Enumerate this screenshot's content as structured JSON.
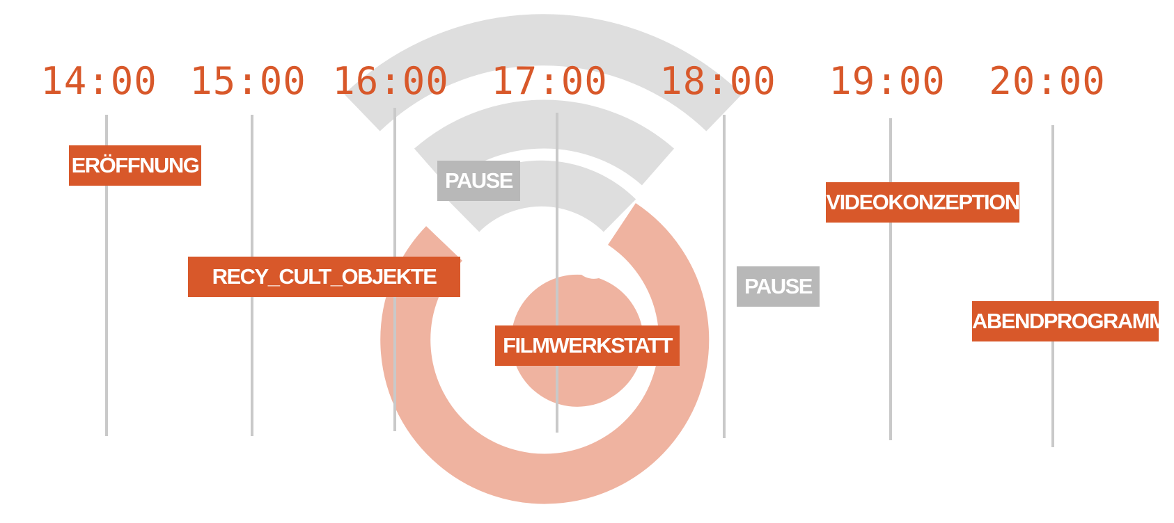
{
  "colors": {
    "accent": "#d8582a",
    "logo_ring": "#efb3a0",
    "logo_arcs": "#dedede",
    "tick": "#c9c9c9",
    "pause": "#b8b8b8"
  },
  "timeline": {
    "hours": [
      {
        "label": "14:00"
      },
      {
        "label": "15:00"
      },
      {
        "label": "16:00"
      },
      {
        "label": "17:00"
      },
      {
        "label": "18:00"
      },
      {
        "label": "19:00"
      },
      {
        "label": "20:00"
      }
    ],
    "events": [
      {
        "label": "ERÖFFNUNG",
        "kind": "session"
      },
      {
        "label": "RECY_CULT_OBJEKTE",
        "kind": "session"
      },
      {
        "label": "PAUSE",
        "kind": "pause"
      },
      {
        "label": "FILMWERKSTATT",
        "kind": "session"
      },
      {
        "label": "PAUSE",
        "kind": "pause"
      },
      {
        "label": "VIDEOKONZEPTION",
        "kind": "session"
      },
      {
        "label": "ABENDPROGRAMM",
        "kind": "session"
      }
    ]
  },
  "background_logo": {
    "icon": "wifi-ring-logo-icon"
  }
}
